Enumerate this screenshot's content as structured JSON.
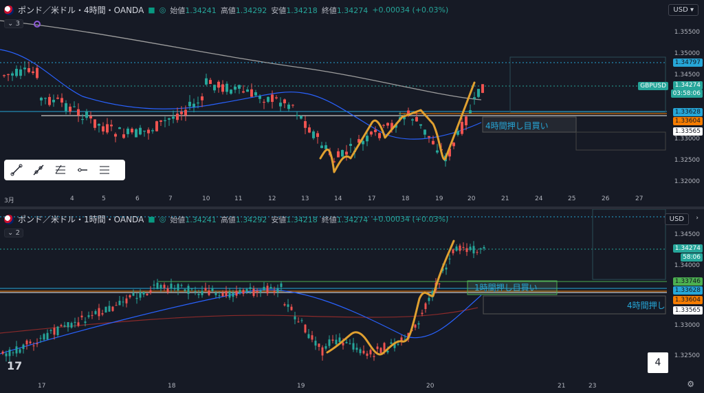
{
  "top": {
    "symbol": "ポンド／米ドル・4時間・OANDA",
    "interval_collapse": "3",
    "ohlc": [
      {
        "label": "始値",
        "value": "1.34241"
      },
      {
        "label": "高値",
        "value": "1.34292"
      },
      {
        "label": "安値",
        "value": "1.34218"
      },
      {
        "label": "終値",
        "value": "1.34274"
      }
    ],
    "change": "+0.00034 (+0.03%)",
    "currency": "USD",
    "y_ticks": [
      "1.35500",
      "1.35000",
      "1.34500",
      "1.33000",
      "1.32500",
      "1.32000"
    ],
    "badges": [
      {
        "text": "1.34797",
        "color": "#26a6d7",
        "text_color": "#131722"
      },
      {
        "text": "GBPUSD",
        "color": "#26a69a",
        "text_color": "#ffffff"
      },
      {
        "text": "1.34274",
        "color": "#26a69a",
        "text_color": "#ffffff"
      },
      {
        "text": "03:58:06",
        "color": "#26a69a",
        "text_color": "#ffffff"
      },
      {
        "text": "1.33628",
        "color": "#26a6d7",
        "text_color": "#131722"
      },
      {
        "text": "1.33604",
        "color": "#f57c00",
        "text_color": "#131722"
      },
      {
        "text": "1.33565",
        "color": "#ffffff",
        "text_color": "#131722"
      }
    ],
    "x_ticks": [
      "3月",
      "4",
      "5",
      "6",
      "7",
      "10",
      "11",
      "12",
      "13",
      "14",
      "17",
      "18",
      "19",
      "20",
      "21",
      "24",
      "25",
      "26",
      "27"
    ],
    "annotation": "4時間押し目買い"
  },
  "bottom": {
    "symbol": "ポンド／米ドル・1時間・OANDA",
    "interval_collapse": "2",
    "ohlc": [
      {
        "label": "始値",
        "value": "1.34241"
      },
      {
        "label": "高値",
        "value": "1.34292"
      },
      {
        "label": "安値",
        "value": "1.34218"
      },
      {
        "label": "終値",
        "value": "1.34274"
      }
    ],
    "change": "+0.00034 (+0.03%)",
    "currency": "USD",
    "y_ticks": [
      "1.34500",
      "1.34000",
      "1.33000",
      "1.32500"
    ],
    "badges": [
      {
        "text": "1.34274",
        "color": "#26a69a",
        "text_color": "#ffffff"
      },
      {
        "text": "58:06",
        "color": "#26a69a",
        "text_color": "#ffffff"
      },
      {
        "text": "1.33746",
        "color": "#4caf50",
        "text_color": "#131722"
      },
      {
        "text": "1.33628",
        "color": "#26a6d7",
        "text_color": "#131722"
      },
      {
        "text": "1.33604",
        "color": "#f57c00",
        "text_color": "#131722"
      },
      {
        "text": "1.33565",
        "color": "#ffffff",
        "text_color": "#131722"
      }
    ],
    "x_ticks": [
      "17",
      "18",
      "19",
      "20",
      "21",
      "23"
    ],
    "annotation_1h": "1時間押し目買い",
    "annotation_4h": "4時間押し"
  },
  "pane_number": "4",
  "colors": {
    "up": "#26a69a",
    "down": "#ef5350",
    "accent": "#26a6d7",
    "highlight": "#e0a030",
    "bg": "#161a25"
  },
  "drawing_tools": [
    "trend-line-icon",
    "ray-icon",
    "fib-retracement-icon",
    "horizontal-ray-icon",
    "parallel-lines-icon"
  ]
}
